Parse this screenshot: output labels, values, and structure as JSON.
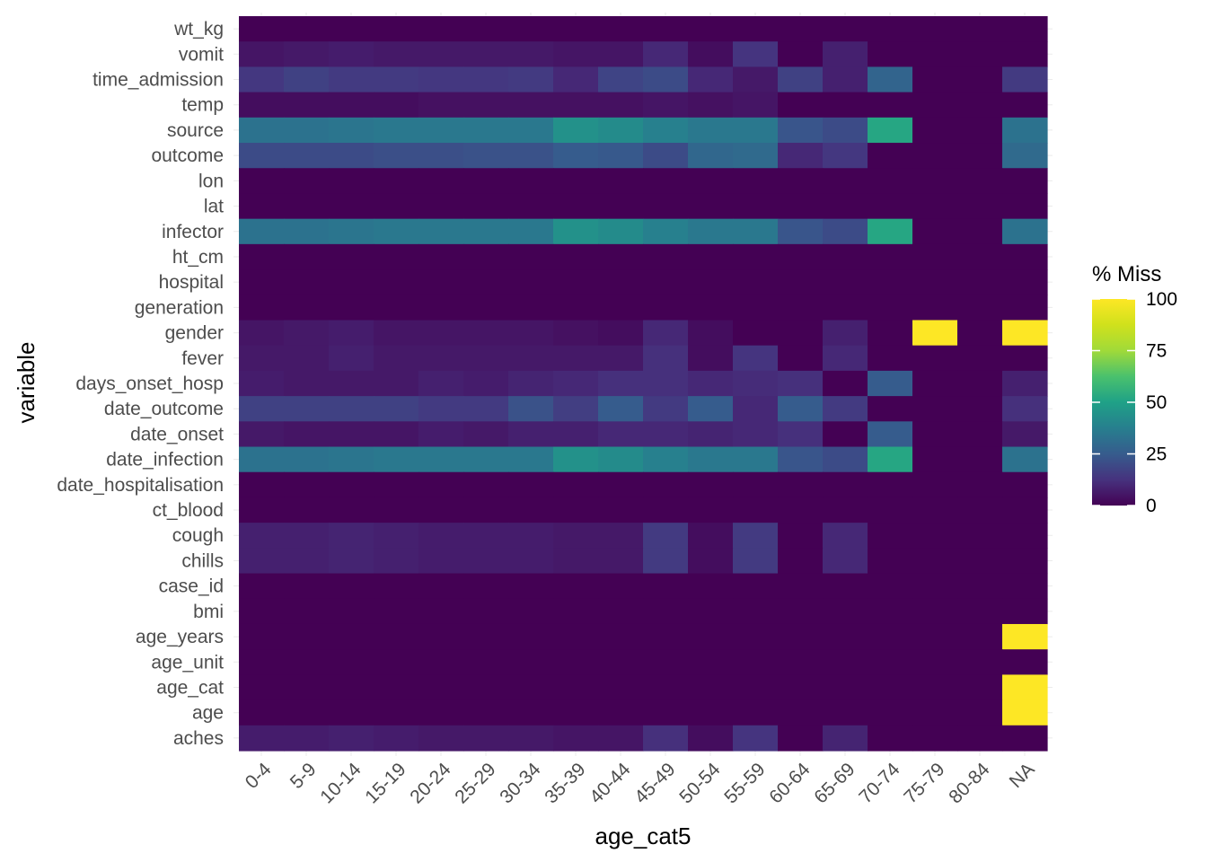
{
  "chart_data": {
    "type": "heatmap",
    "title": "",
    "xlabel": "age_cat5",
    "ylabel": "variable",
    "x": [
      "0-4",
      "5-9",
      "10-14",
      "15-19",
      "20-24",
      "25-29",
      "30-34",
      "35-39",
      "40-44",
      "45-49",
      "50-54",
      "55-59",
      "60-64",
      "65-69",
      "70-74",
      "75-79",
      "80-84",
      "NA"
    ],
    "y": [
      "wt_kg",
      "vomit",
      "time_admission",
      "temp",
      "source",
      "outcome",
      "lon",
      "lat",
      "infector",
      "ht_cm",
      "hospital",
      "generation",
      "gender",
      "fever",
      "days_onset_hosp",
      "date_outcome",
      "date_onset",
      "date_infection",
      "date_hospitalisation",
      "ct_blood",
      "cough",
      "chills",
      "case_id",
      "bmi",
      "age_years",
      "age_unit",
      "age_cat",
      "age",
      "aches"
    ],
    "values": [
      [
        0,
        0,
        0,
        0,
        0,
        0,
        0,
        0,
        0,
        0,
        0,
        0,
        0,
        0,
        0,
        0,
        0,
        0
      ],
      [
        5,
        6,
        7,
        6,
        6,
        6,
        6,
        5,
        5,
        10,
        3,
        13,
        0,
        8,
        0,
        0,
        0,
        0
      ],
      [
        14,
        17,
        15,
        15,
        14,
        14,
        15,
        10,
        18,
        20,
        10,
        6,
        17,
        8,
        28,
        0,
        0,
        15
      ],
      [
        3,
        3,
        3,
        3,
        4,
        4,
        4,
        4,
        4,
        5,
        4,
        5,
        0,
        0,
        0,
        0,
        0,
        0
      ],
      [
        33,
        33,
        34,
        35,
        35,
        35,
        35,
        44,
        42,
        38,
        35,
        35,
        23,
        20,
        52,
        0,
        0,
        33
      ],
      [
        20,
        20,
        20,
        21,
        21,
        22,
        22,
        25,
        24,
        20,
        29,
        30,
        10,
        14,
        0,
        0,
        0,
        30
      ],
      [
        0,
        0,
        0,
        0,
        0,
        0,
        0,
        0,
        0,
        0,
        0,
        0,
        0,
        0,
        0,
        0,
        0,
        0
      ],
      [
        0,
        0,
        0,
        0,
        0,
        0,
        0,
        0,
        0,
        0,
        0,
        0,
        0,
        0,
        0,
        0,
        0,
        0
      ],
      [
        33,
        33,
        34,
        35,
        35,
        35,
        35,
        44,
        42,
        38,
        35,
        35,
        23,
        20,
        52,
        0,
        0,
        33
      ],
      [
        0,
        0,
        0,
        0,
        0,
        0,
        0,
        0,
        0,
        0,
        0,
        0,
        0,
        0,
        0,
        0,
        0,
        0
      ],
      [
        0,
        0,
        0,
        0,
        0,
        0,
        0,
        0,
        0,
        0,
        0,
        0,
        0,
        0,
        0,
        0,
        0,
        0
      ],
      [
        0,
        0,
        0,
        0,
        0,
        0,
        0,
        0,
        0,
        0,
        0,
        0,
        0,
        0,
        0,
        0,
        0,
        0
      ],
      [
        5,
        6,
        7,
        5,
        5,
        5,
        5,
        4,
        3,
        10,
        3,
        0,
        0,
        8,
        0,
        100,
        0,
        100
      ],
      [
        6,
        6,
        8,
        6,
        6,
        6,
        6,
        6,
        6,
        12,
        3,
        13,
        0,
        10,
        0,
        0,
        0,
        0
      ],
      [
        7,
        6,
        6,
        6,
        8,
        7,
        9,
        10,
        12,
        12,
        10,
        11,
        12,
        0,
        25,
        0,
        0,
        8
      ],
      [
        17,
        17,
        17,
        17,
        15,
        15,
        22,
        16,
        25,
        15,
        25,
        10,
        25,
        15,
        0,
        0,
        0,
        12
      ],
      [
        6,
        5,
        5,
        5,
        7,
        6,
        8,
        8,
        10,
        10,
        9,
        10,
        12,
        0,
        25,
        0,
        0,
        6
      ],
      [
        33,
        33,
        34,
        35,
        35,
        35,
        35,
        44,
        42,
        38,
        35,
        35,
        23,
        20,
        52,
        0,
        0,
        33
      ],
      [
        0,
        0,
        0,
        0,
        0,
        0,
        0,
        0,
        0,
        0,
        0,
        0,
        0,
        0,
        0,
        0,
        0,
        0
      ],
      [
        0,
        0,
        0,
        0,
        0,
        0,
        0,
        0,
        0,
        0,
        0,
        0,
        0,
        0,
        0,
        0,
        0,
        0
      ],
      [
        8,
        8,
        9,
        8,
        7,
        7,
        7,
        6,
        6,
        15,
        3,
        15,
        0,
        10,
        0,
        0,
        0,
        0
      ],
      [
        8,
        8,
        9,
        8,
        7,
        7,
        7,
        6,
        6,
        15,
        3,
        15,
        0,
        10,
        0,
        0,
        0,
        0
      ],
      [
        0,
        0,
        0,
        0,
        0,
        0,
        0,
        0,
        0,
        0,
        0,
        0,
        0,
        0,
        0,
        0,
        0,
        0
      ],
      [
        0,
        0,
        0,
        0,
        0,
        0,
        0,
        0,
        0,
        0,
        0,
        0,
        0,
        0,
        0,
        0,
        0,
        0
      ],
      [
        0,
        0,
        0,
        0,
        0,
        0,
        0,
        0,
        0,
        0,
        0,
        0,
        0,
        0,
        0,
        0,
        0,
        100
      ],
      [
        0,
        0,
        0,
        0,
        0,
        0,
        0,
        0,
        0,
        0,
        0,
        0,
        0,
        0,
        0,
        0,
        0,
        0
      ],
      [
        0,
        0,
        0,
        0,
        0,
        0,
        0,
        0,
        0,
        0,
        0,
        0,
        0,
        0,
        0,
        0,
        0,
        100
      ],
      [
        0,
        0,
        0,
        0,
        0,
        0,
        0,
        0,
        0,
        0,
        0,
        0,
        0,
        0,
        0,
        0,
        0,
        100
      ],
      [
        7,
        7,
        8,
        7,
        6,
        6,
        6,
        5,
        5,
        12,
        3,
        13,
        0,
        9,
        0,
        0,
        0,
        0
      ]
    ],
    "colorscale": "viridis",
    "value_range": [
      0,
      100
    ],
    "legend": {
      "title": "% Miss",
      "ticks": [
        0,
        25,
        50,
        75,
        100
      ],
      "tick_labels": [
        "0",
        "25",
        "50",
        "75",
        "100"
      ],
      "position": "right"
    },
    "grid": true
  }
}
